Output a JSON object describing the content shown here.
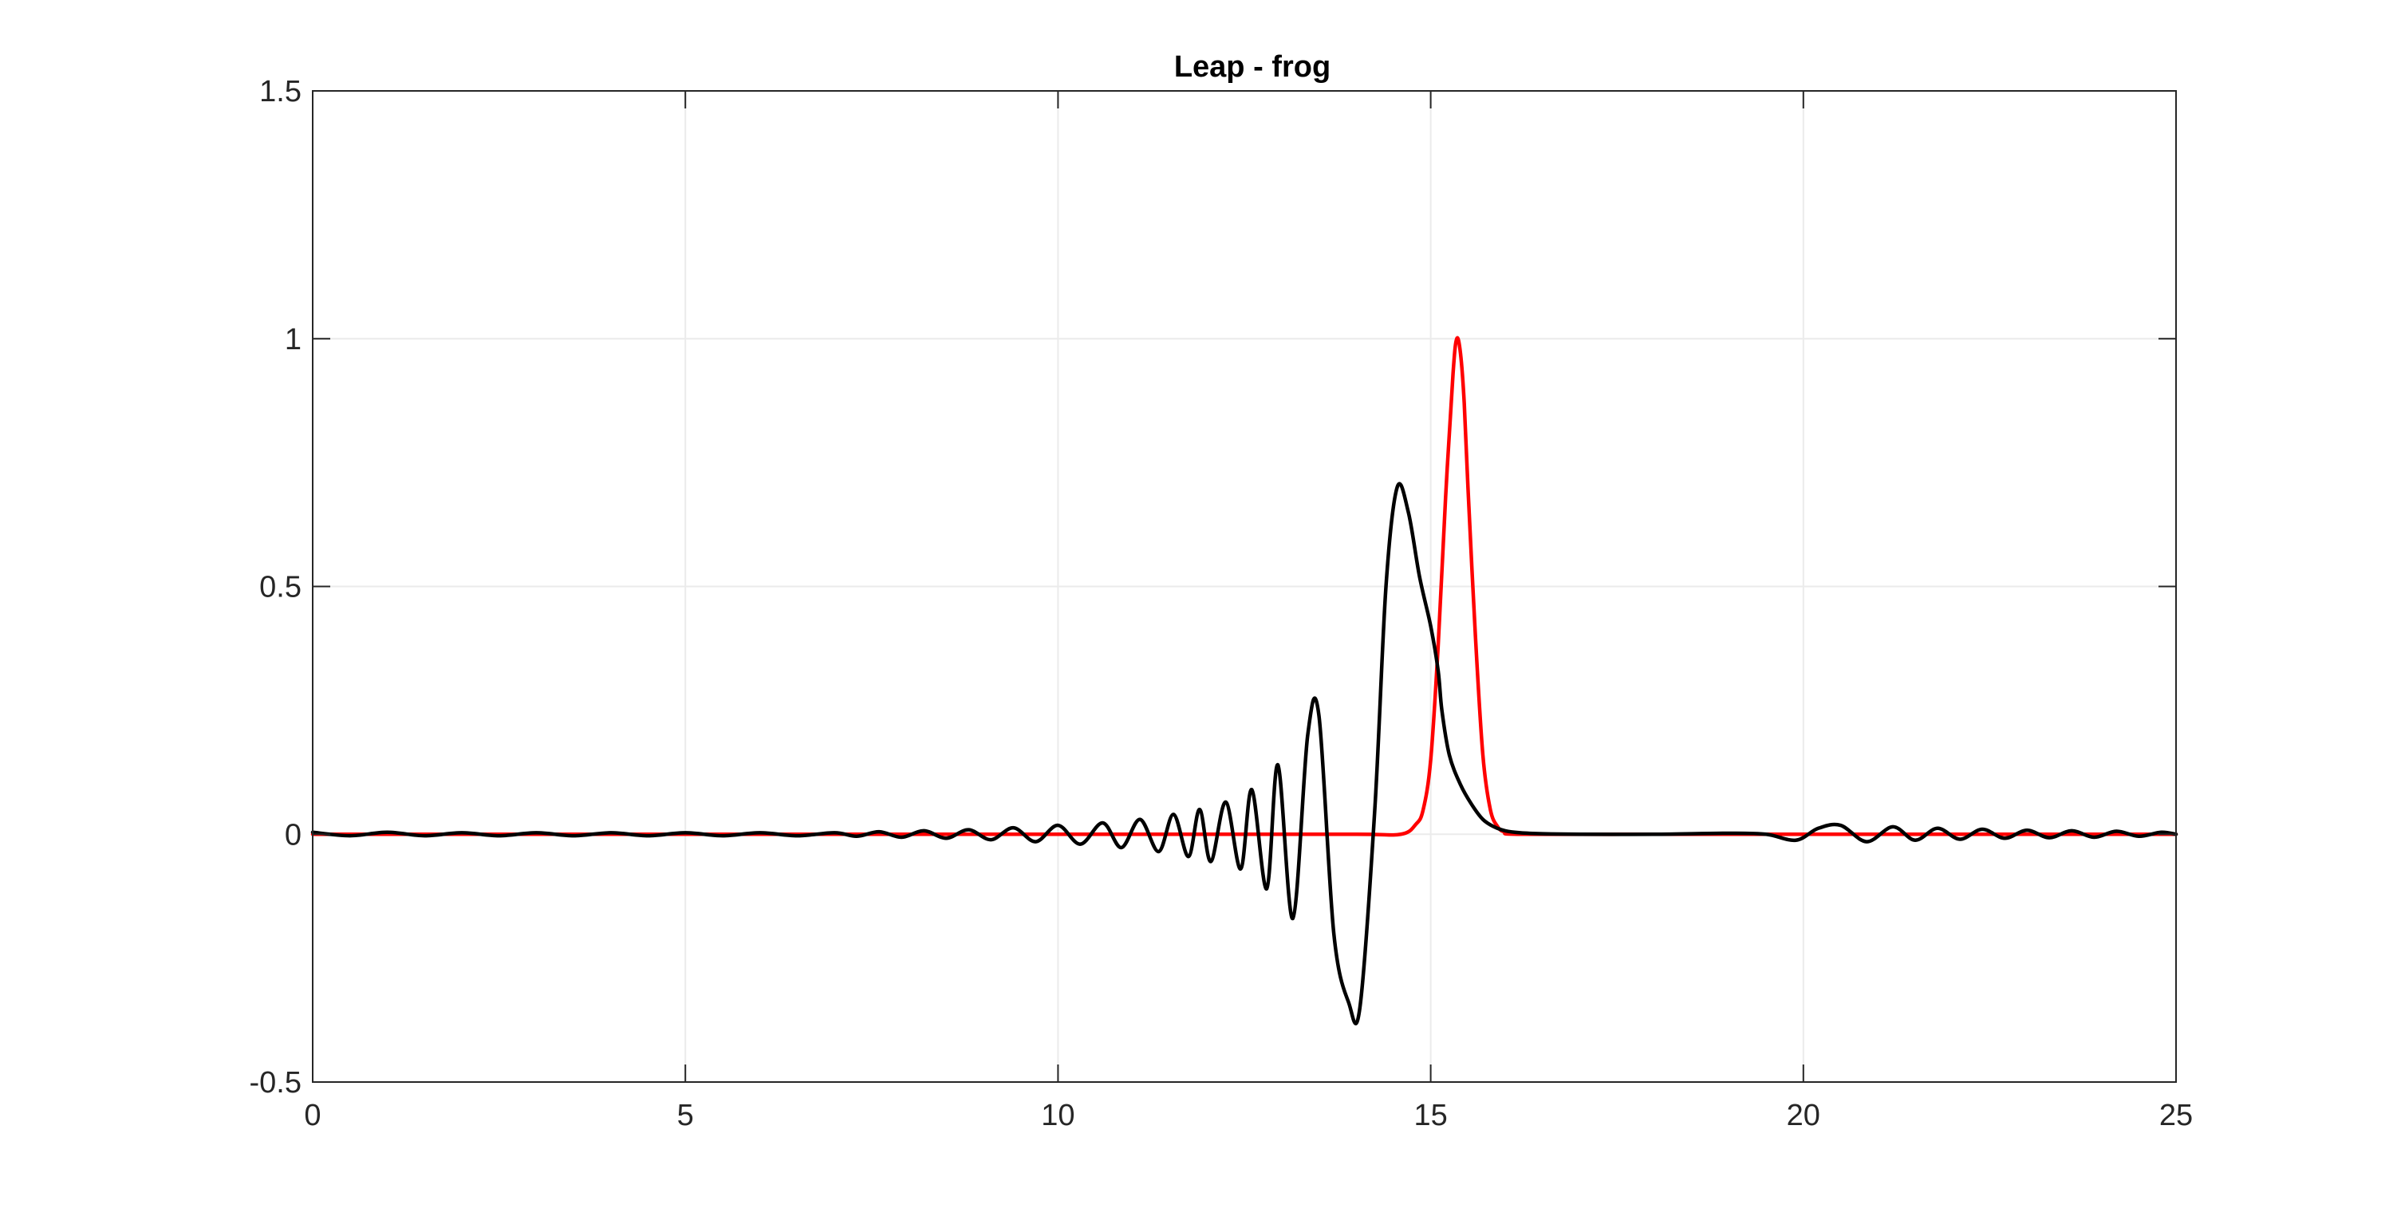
{
  "chart_data": {
    "type": "line",
    "title": "Leap - frog",
    "xlabel": "",
    "ylabel": "",
    "xlim": [
      0,
      25
    ],
    "ylim": [
      -0.5,
      1.5
    ],
    "x_ticks": [
      "0",
      "5",
      "10",
      "15",
      "20",
      "25"
    ],
    "y_ticks": [
      "-0.5",
      "0",
      "0.5",
      "1",
      "1.5"
    ],
    "grid": true,
    "box": true,
    "colors": {
      "axes": "#262626",
      "grid": "#ebebeb",
      "exact": "#ff0000",
      "numerical": "#000000"
    },
    "series": [
      {
        "color": "#ff0000",
        "x": [
          0,
          2,
          4,
          6,
          8,
          10,
          12,
          14,
          14.6,
          14.8,
          14.9,
          15.0,
          15.1,
          15.2,
          15.3,
          15.35,
          15.4,
          15.45,
          15.5,
          15.6,
          15.7,
          15.8,
          15.9,
          16.0,
          16.2,
          18,
          20,
          22,
          25
        ],
        "y": [
          0,
          0,
          0,
          0,
          0,
          0,
          0,
          0,
          0,
          0.02,
          0.05,
          0.15,
          0.38,
          0.68,
          0.93,
          1.0,
          0.97,
          0.87,
          0.7,
          0.4,
          0.16,
          0.05,
          0.015,
          0.004,
          0,
          0,
          0,
          0,
          0
        ]
      },
      {
        "color": "#000000",
        "x": [
          0,
          0.5,
          1,
          1.5,
          2,
          2.5,
          3,
          3.5,
          4,
          4.5,
          5,
          5.5,
          6,
          6.5,
          7,
          7.3,
          7.6,
          7.9,
          8.2,
          8.5,
          8.8,
          9.1,
          9.4,
          9.7,
          10.0,
          10.3,
          10.6,
          10.85,
          11.1,
          11.35,
          11.55,
          11.75,
          11.9,
          12.05,
          12.25,
          12.45,
          12.6,
          12.8,
          12.95,
          13.15,
          13.35,
          13.5,
          13.7,
          13.9,
          14.05,
          14.25,
          14.4,
          14.55,
          14.7,
          14.85,
          15.0,
          15.1,
          15.15,
          15.25,
          15.4,
          15.55,
          15.7,
          15.85,
          16.0,
          16.2,
          16.5,
          17,
          18,
          19,
          19.5,
          19.9,
          20.2,
          20.5,
          20.85,
          21.2,
          21.5,
          21.8,
          22.1,
          22.4,
          22.7,
          23.0,
          23.3,
          23.6,
          23.9,
          24.2,
          24.5,
          24.8,
          25
        ],
        "y": [
          0.004,
          -0.003,
          0.004,
          -0.003,
          0.003,
          -0.003,
          0.003,
          -0.003,
          0.003,
          -0.003,
          0.003,
          -0.003,
          0.003,
          -0.003,
          0.003,
          -0.004,
          0.005,
          -0.006,
          0.007,
          -0.008,
          0.009,
          -0.011,
          0.013,
          -0.015,
          0.018,
          -0.02,
          0.023,
          -0.027,
          0.03,
          -0.035,
          0.04,
          -0.045,
          0.05,
          -0.055,
          0.065,
          -0.07,
          0.09,
          -0.11,
          0.14,
          -0.17,
          0.2,
          0.24,
          -0.2,
          -0.34,
          -0.35,
          0.05,
          0.5,
          0.7,
          0.65,
          0.52,
          0.42,
          0.33,
          0.25,
          0.16,
          0.1,
          0.06,
          0.03,
          0.015,
          0.007,
          0.003,
          0.001,
          0.0,
          0.0,
          0.002,
          0.0,
          -0.012,
          0.012,
          0.018,
          -0.015,
          0.015,
          -0.012,
          0.012,
          -0.01,
          0.01,
          -0.008,
          0.008,
          -0.007,
          0.007,
          -0.006,
          0.006,
          -0.004,
          0.004,
          0.0
        ]
      }
    ]
  }
}
